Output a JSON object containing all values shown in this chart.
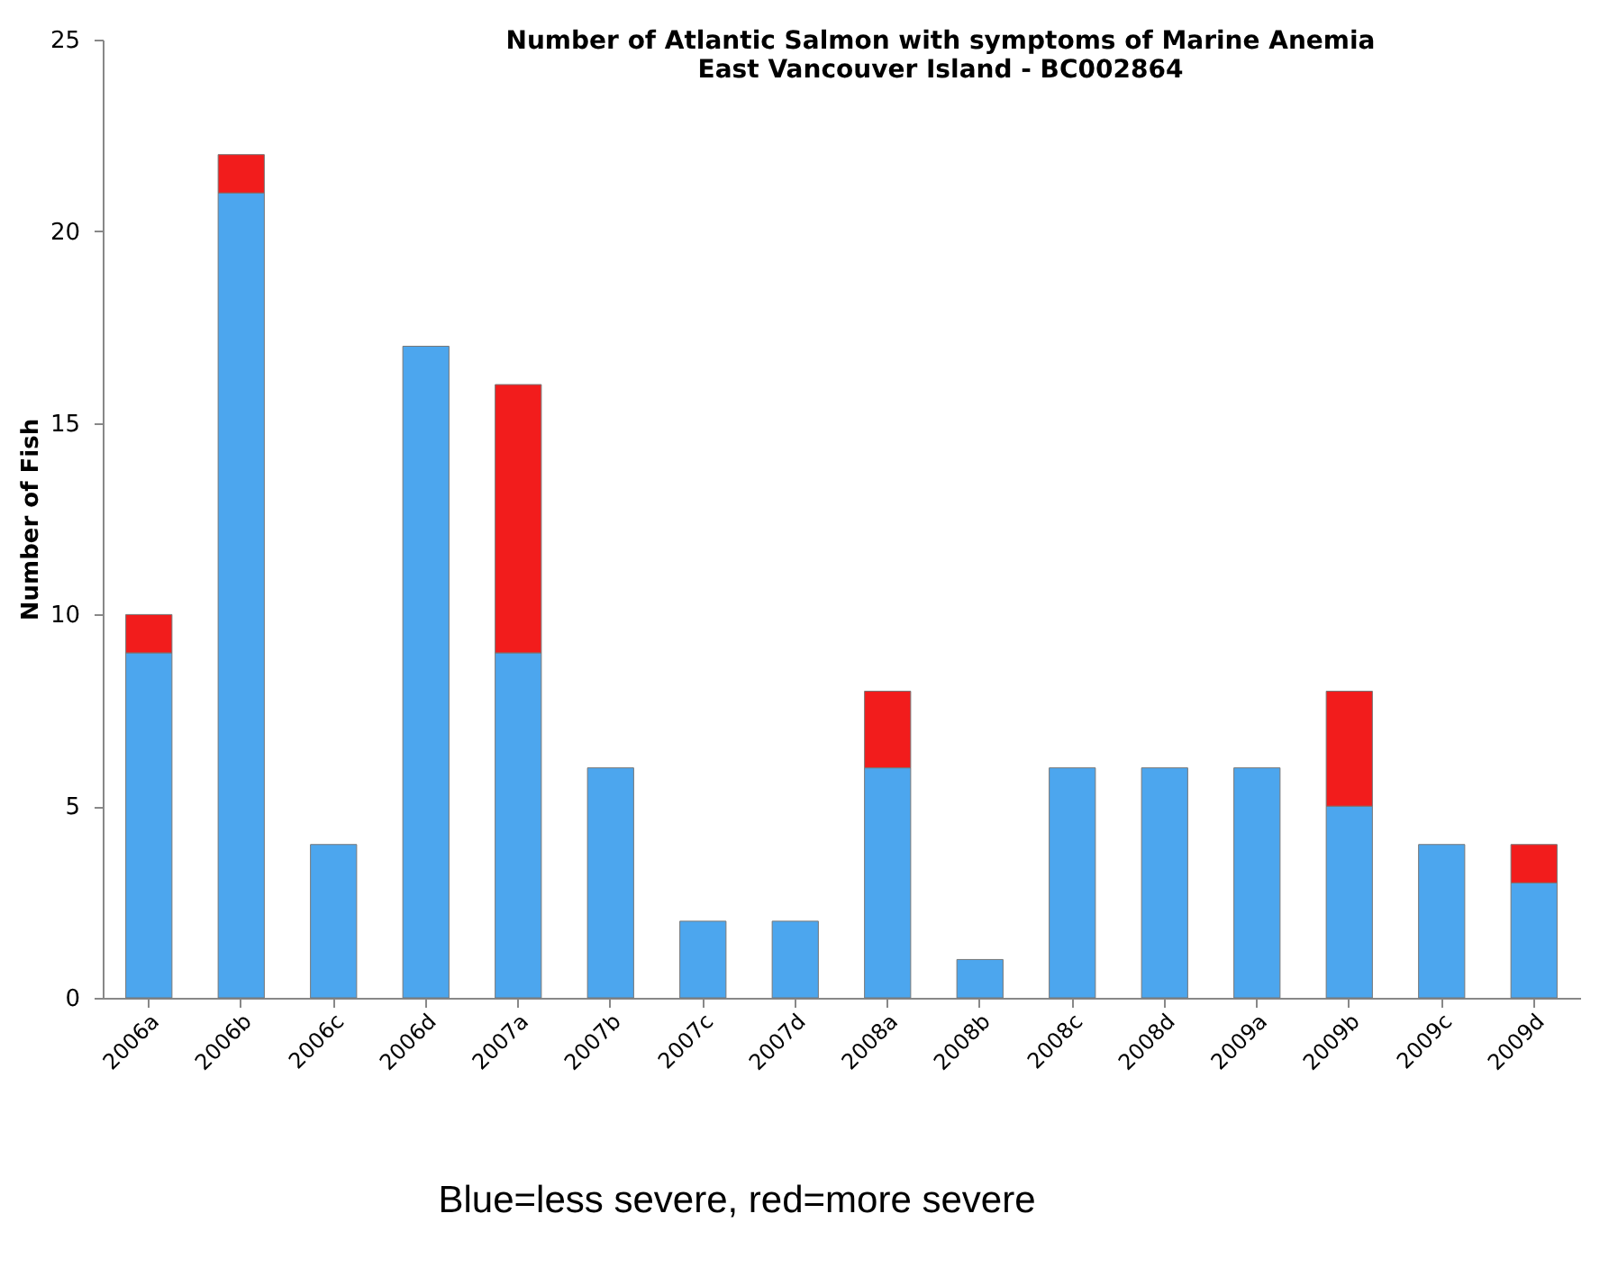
{
  "chart_data": {
    "type": "bar",
    "title": [
      "Number of Atlantic Salmon with symptoms of Marine Anemia",
      "East Vancouver Island - BC002864"
    ],
    "ylabel": "Number of Fish",
    "categories": [
      "2006a",
      "2006b",
      "2006c",
      "2006d",
      "2007a",
      "2007b",
      "2007c",
      "2007d",
      "2008a",
      "2008b",
      "2008c",
      "2008d",
      "2009a",
      "2009b",
      "2009c",
      "2009d"
    ],
    "stacked": true,
    "series": [
      {
        "color": "#4ca6ee",
        "values": [
          9,
          21,
          4,
          17,
          9,
          6,
          2,
          2,
          6,
          1,
          6,
          6,
          6,
          5,
          4,
          3
        ]
      },
      {
        "color": "#f21c1c",
        "values": [
          1,
          1,
          null,
          null,
          7,
          null,
          null,
          null,
          2,
          null,
          null,
          null,
          null,
          3,
          null,
          1
        ]
      }
    ],
    "ylim": [
      0,
      25
    ],
    "yticks": [
      0,
      5,
      10,
      15,
      20,
      25
    ],
    "grid": false,
    "legend": false,
    "annotations": [
      "Blue=less severe, red=more severe"
    ]
  }
}
